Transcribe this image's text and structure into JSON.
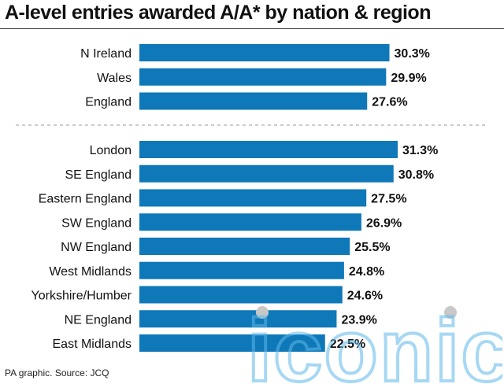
{
  "title": "A-level entries awarded A/A* by nation & region",
  "source": "PA graphic. Source: JCQ",
  "watermark": "iconic",
  "colors": {
    "bar": "#0e78b9",
    "text": "#111111",
    "divider": "#999999",
    "watermark": "#5fb9ea",
    "watermark_dot": "#c8c8c8"
  },
  "chart_data": {
    "type": "bar",
    "orientation": "horizontal",
    "title": "A-level entries awarded A/A* by nation & region",
    "xlabel": "",
    "ylabel": "",
    "value_suffix": "%",
    "xlim": [
      0,
      31.3
    ],
    "grid": false,
    "groups": [
      {
        "categories": [
          "N Ireland",
          "Wales",
          "England"
        ],
        "values": [
          30.3,
          29.9,
          27.6
        ],
        "labels": [
          "30.3%",
          "29.9%",
          "27.6%"
        ]
      },
      {
        "categories": [
          "London",
          "SE England",
          "Eastern England",
          "SW England",
          "NW England",
          "West Midlands",
          "Yorkshire/Humber",
          "NE England",
          "East Midlands"
        ],
        "values": [
          31.3,
          30.8,
          27.5,
          26.9,
          25.5,
          24.8,
          24.6,
          23.9,
          22.5
        ],
        "labels": [
          "31.3%",
          "30.8%",
          "27.5%",
          "26.9%",
          "25.5%",
          "24.8%",
          "24.6%",
          "23.9%",
          "22.5%"
        ]
      }
    ]
  }
}
